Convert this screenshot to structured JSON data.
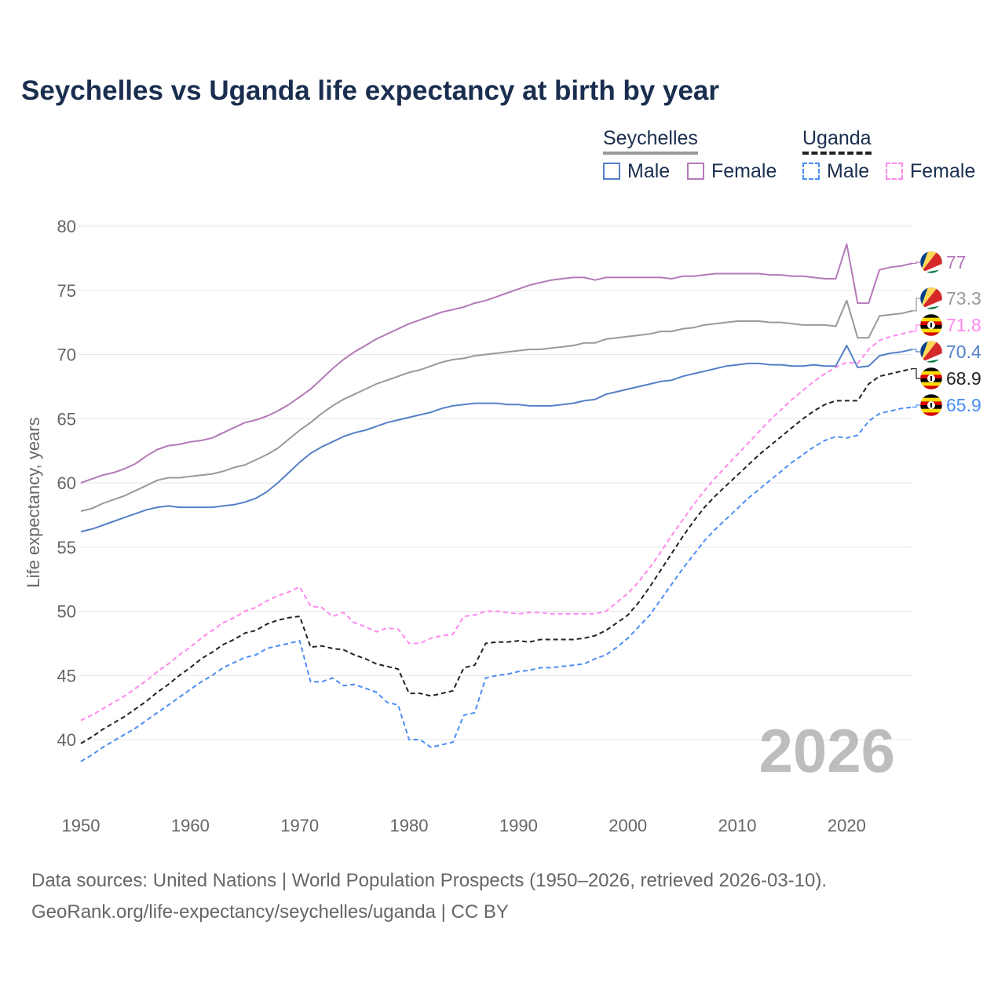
{
  "chart_data": {
    "type": "line",
    "title": "Seychelles vs Uganda life expectancy at birth by year",
    "xlabel": "",
    "ylabel": "Life expectancy, years",
    "xlim": [
      1950,
      2026
    ],
    "ylim": [
      37,
      80
    ],
    "x_ticks": [
      1950,
      1960,
      1970,
      1980,
      1990,
      2000,
      2010,
      2020
    ],
    "y_ticks": [
      40,
      45,
      50,
      55,
      60,
      65,
      70,
      75,
      80
    ],
    "grid": true,
    "current_year": "2026",
    "legend": {
      "groups": [
        {
          "label": "Seychelles",
          "items": [
            "Male",
            "Female"
          ]
        },
        {
          "label": "Uganda",
          "items": [
            "Male",
            "Female"
          ]
        }
      ],
      "placement": "top-right"
    },
    "x_start": 1950,
    "series": [
      {
        "name": "Seychelles Female",
        "color": "#b47ab8",
        "dashed": false,
        "end_label": "77",
        "values": [
          60.0,
          60.3,
          60.6,
          60.8,
          61.1,
          61.5,
          62.1,
          62.6,
          62.9,
          63.0,
          63.2,
          63.3,
          63.5,
          63.9,
          64.3,
          64.7,
          64.9,
          65.2,
          65.6,
          66.1,
          66.7,
          67.3,
          68.1,
          68.9,
          69.6,
          70.2,
          70.7,
          71.2,
          71.6,
          72.0,
          72.4,
          72.7,
          73.0,
          73.3,
          73.5,
          73.7,
          74.0,
          74.2,
          74.5,
          74.8,
          75.1,
          75.4,
          75.6,
          75.8,
          75.9,
          76.0,
          76.0,
          75.8,
          76.0,
          76.0,
          76.0,
          76.0,
          76.0,
          76.0,
          75.9,
          76.1,
          76.1,
          76.2,
          76.3,
          76.3,
          76.3,
          76.3,
          76.3,
          76.2,
          76.2,
          76.1,
          76.1,
          76.0,
          75.9,
          75.9,
          78.6,
          74.0,
          74.0,
          76.6,
          76.8,
          76.9,
          77.1
        ]
      },
      {
        "name": "Seychelles",
        "color": "#999999",
        "dashed": false,
        "end_label": "73.3",
        "values": [
          57.8,
          58.0,
          58.4,
          58.7,
          59.0,
          59.4,
          59.8,
          60.2,
          60.4,
          60.4,
          60.5,
          60.6,
          60.7,
          60.9,
          61.2,
          61.4,
          61.8,
          62.2,
          62.7,
          63.4,
          64.1,
          64.7,
          65.4,
          66.0,
          66.5,
          66.9,
          67.3,
          67.7,
          68.0,
          68.3,
          68.6,
          68.8,
          69.1,
          69.4,
          69.6,
          69.7,
          69.9,
          70.0,
          70.1,
          70.2,
          70.3,
          70.4,
          70.4,
          70.5,
          70.6,
          70.7,
          70.9,
          70.9,
          71.2,
          71.3,
          71.4,
          71.5,
          71.6,
          71.8,
          71.8,
          72.0,
          72.1,
          72.3,
          72.4,
          72.5,
          72.6,
          72.6,
          72.6,
          72.5,
          72.5,
          72.4,
          72.3,
          72.3,
          72.3,
          72.2,
          74.2,
          71.3,
          71.3,
          73.0,
          73.1,
          73.2,
          73.4
        ]
      },
      {
        "name": "Uganda Female",
        "color": "#ff88ee",
        "dashed": true,
        "end_label": "71.8",
        "values": [
          41.5,
          41.9,
          42.4,
          42.9,
          43.4,
          44.0,
          44.6,
          45.3,
          45.9,
          46.6,
          47.2,
          47.9,
          48.5,
          49.1,
          49.5,
          50.0,
          50.3,
          50.8,
          51.2,
          51.5,
          51.9,
          50.4,
          50.3,
          49.6,
          49.9,
          49.1,
          48.8,
          48.4,
          48.7,
          48.6,
          47.5,
          47.5,
          47.9,
          48.1,
          48.2,
          49.6,
          49.7,
          50.0,
          50.0,
          49.9,
          49.8,
          49.9,
          49.9,
          49.8,
          49.8,
          49.8,
          49.8,
          49.8,
          50.0,
          50.7,
          51.4,
          52.3,
          53.4,
          54.6,
          55.9,
          57.1,
          58.3,
          59.4,
          60.4,
          61.3,
          62.2,
          63.1,
          64.0,
          64.9,
          65.7,
          66.5,
          67.2,
          67.9,
          68.5,
          69.0,
          69.4,
          69.3,
          70.4,
          71.1,
          71.4,
          71.6,
          71.8
        ]
      },
      {
        "name": "Seychelles Male",
        "color": "#5580c8",
        "dashed": false,
        "end_label": "70.4",
        "values": [
          56.2,
          56.4,
          56.7,
          57.0,
          57.3,
          57.6,
          57.9,
          58.1,
          58.2,
          58.1,
          58.1,
          58.1,
          58.1,
          58.2,
          58.3,
          58.5,
          58.8,
          59.3,
          60.0,
          60.8,
          61.6,
          62.3,
          62.8,
          63.2,
          63.6,
          63.9,
          64.1,
          64.4,
          64.7,
          64.9,
          65.1,
          65.3,
          65.5,
          65.8,
          66.0,
          66.1,
          66.2,
          66.2,
          66.2,
          66.1,
          66.1,
          66.0,
          66.0,
          66.0,
          66.1,
          66.2,
          66.4,
          66.5,
          66.9,
          67.1,
          67.3,
          67.5,
          67.7,
          67.9,
          68.0,
          68.3,
          68.5,
          68.7,
          68.9,
          69.1,
          69.2,
          69.3,
          69.3,
          69.2,
          69.2,
          69.1,
          69.1,
          69.2,
          69.1,
          69.1,
          70.7,
          69.0,
          69.1,
          69.9,
          70.1,
          70.2,
          70.4
        ]
      },
      {
        "name": "Uganda",
        "color": "#222222",
        "dashed": true,
        "end_label": "68.9",
        "values": [
          39.7,
          40.2,
          40.8,
          41.3,
          41.8,
          42.4,
          43.0,
          43.7,
          44.3,
          45.0,
          45.6,
          46.3,
          46.8,
          47.4,
          47.8,
          48.3,
          48.5,
          49.0,
          49.3,
          49.5,
          49.6,
          47.2,
          47.3,
          47.1,
          47.0,
          46.6,
          46.3,
          45.9,
          45.7,
          45.5,
          43.6,
          43.6,
          43.4,
          43.6,
          43.8,
          45.6,
          45.8,
          47.5,
          47.6,
          47.6,
          47.7,
          47.6,
          47.8,
          47.8,
          47.8,
          47.8,
          47.9,
          48.1,
          48.5,
          49.1,
          49.7,
          50.7,
          51.9,
          53.2,
          54.5,
          55.8,
          57.0,
          58.1,
          59.0,
          59.8,
          60.6,
          61.4,
          62.2,
          62.9,
          63.6,
          64.3,
          65.0,
          65.6,
          66.1,
          66.4,
          66.4,
          66.4,
          67.7,
          68.3,
          68.5,
          68.7,
          68.9
        ]
      },
      {
        "name": "Uganda Male",
        "color": "#4a8ef5",
        "dashed": true,
        "end_label": "65.9",
        "values": [
          38.3,
          38.8,
          39.4,
          39.9,
          40.4,
          40.9,
          41.5,
          42.1,
          42.7,
          43.3,
          43.9,
          44.5,
          45.0,
          45.6,
          46.0,
          46.4,
          46.6,
          47.1,
          47.3,
          47.5,
          47.7,
          44.5,
          44.5,
          44.8,
          44.2,
          44.3,
          44.0,
          43.7,
          42.9,
          42.7,
          40.0,
          40.0,
          39.4,
          39.6,
          39.8,
          41.9,
          42.1,
          44.8,
          45.0,
          45.1,
          45.3,
          45.4,
          45.6,
          45.6,
          45.7,
          45.8,
          45.9,
          46.3,
          46.6,
          47.2,
          47.9,
          48.8,
          49.7,
          50.9,
          52.1,
          53.3,
          54.4,
          55.5,
          56.4,
          57.2,
          58.0,
          58.8,
          59.5,
          60.2,
          60.9,
          61.6,
          62.2,
          62.8,
          63.3,
          63.6,
          63.5,
          63.7,
          64.8,
          65.4,
          65.6,
          65.8,
          65.9
        ]
      }
    ]
  },
  "footer": {
    "line1": "Data sources: United Nations | World Population Prospects (1950–2026, retrieved 2026-03-10).",
    "line2": "GeoRank.org/life-expectancy/seychelles/uganda | CC BY"
  }
}
